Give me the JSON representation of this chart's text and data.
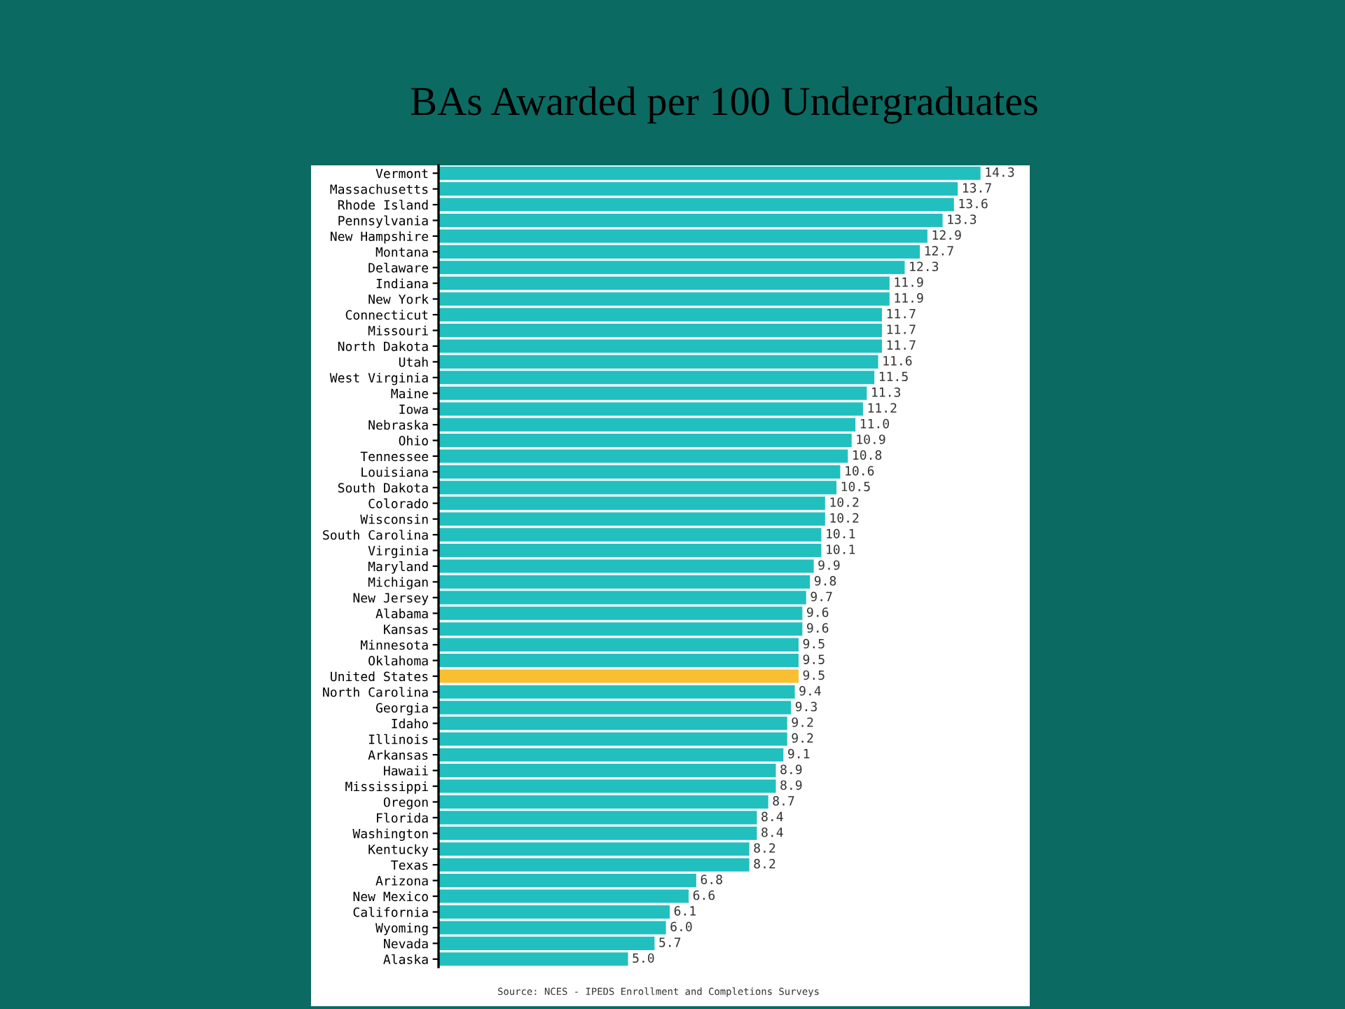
{
  "chart_data": {
    "type": "bar",
    "orientation": "horizontal",
    "title": "BAs Awarded per 100 Undergraduates",
    "categories": [
      "Vermont",
      "Massachusetts",
      "Rhode Island",
      "Pennsylvania",
      "New Hampshire",
      "Montana",
      "Delaware",
      "Indiana",
      "New York",
      "Connecticut",
      "Missouri",
      "North Dakota",
      "Utah",
      "West Virginia",
      "Maine",
      "Iowa",
      "Nebraska",
      "Ohio",
      "Tennessee",
      "Louisiana",
      "South Dakota",
      "Colorado",
      "Wisconsin",
      "South Carolina",
      "Virginia",
      "Maryland",
      "Michigan",
      "New Jersey",
      "Alabama",
      "Kansas",
      "Minnesota",
      "Oklahoma",
      "United States",
      "North Carolina",
      "Georgia",
      "Idaho",
      "Illinois",
      "Arkansas",
      "Hawaii",
      "Mississippi",
      "Oregon",
      "Florida",
      "Washington",
      "Kentucky",
      "Texas",
      "Arizona",
      "New Mexico",
      "California",
      "Wyoming",
      "Nevada",
      "Alaska"
    ],
    "values": [
      14.3,
      13.7,
      13.6,
      13.3,
      12.9,
      12.7,
      12.3,
      11.9,
      11.9,
      11.7,
      11.7,
      11.7,
      11.6,
      11.5,
      11.3,
      11.2,
      11.0,
      10.9,
      10.8,
      10.6,
      10.5,
      10.2,
      10.2,
      10.1,
      10.1,
      9.9,
      9.8,
      9.7,
      9.6,
      9.6,
      9.5,
      9.5,
      9.5,
      9.4,
      9.3,
      9.2,
      9.2,
      9.1,
      8.9,
      8.9,
      8.7,
      8.4,
      8.4,
      8.2,
      8.2,
      6.8,
      6.6,
      6.1,
      6.0,
      5.7,
      5.0
    ],
    "colors": [
      "#22bfbf",
      "#22bfbf",
      "#22bfbf",
      "#22bfbf",
      "#22bfbf",
      "#22bfbf",
      "#22bfbf",
      "#22bfbf",
      "#22bfbf",
      "#22bfbf",
      "#22bfbf",
      "#22bfbf",
      "#22bfbf",
      "#22bfbf",
      "#22bfbf",
      "#22bfbf",
      "#22bfbf",
      "#22bfbf",
      "#22bfbf",
      "#22bfbf",
      "#22bfbf",
      "#22bfbf",
      "#22bfbf",
      "#22bfbf",
      "#22bfbf",
      "#22bfbf",
      "#22bfbf",
      "#22bfbf",
      "#22bfbf",
      "#22bfbf",
      "#22bfbf",
      "#22bfbf",
      "#f8c030",
      "#22bfbf",
      "#22bfbf",
      "#22bfbf",
      "#22bfbf",
      "#22bfbf",
      "#22bfbf",
      "#22bfbf",
      "#22bfbf",
      "#22bfbf",
      "#22bfbf",
      "#22bfbf",
      "#22bfbf",
      "#22bfbf",
      "#22bfbf",
      "#22bfbf",
      "#22bfbf",
      "#22bfbf",
      "#22bfbf"
    ],
    "xlim": [
      0,
      15.6
    ],
    "tick_labels": "y",
    "value_labels": [
      "14.3",
      "13.7",
      "13.6",
      "13.3",
      "12.9",
      "12.7",
      "12.3",
      "11.9",
      "11.9",
      "11.7",
      "11.7",
      "11.7",
      "11.6",
      "11.5",
      "11.3",
      "11.2",
      "11.0",
      "10.9",
      "10.8",
      "10.6",
      "10.5",
      "10.2",
      "10.2",
      "10.1",
      "10.1",
      "9.9",
      "9.8",
      "9.7",
      "9.6",
      "9.6",
      "9.5",
      "9.5",
      "9.5",
      "9.4",
      "9.3",
      "9.2",
      "9.2",
      "9.1",
      "8.9",
      "8.9",
      "8.7",
      "8.4",
      "8.4",
      "8.2",
      "8.2",
      "6.8",
      "6.6",
      "6.1",
      "6.0",
      "5.7",
      "5.0"
    ],
    "grid": false,
    "annotations": [
      "Source: NCES - IPEDS Enrollment and Completions Surveys"
    ]
  }
}
